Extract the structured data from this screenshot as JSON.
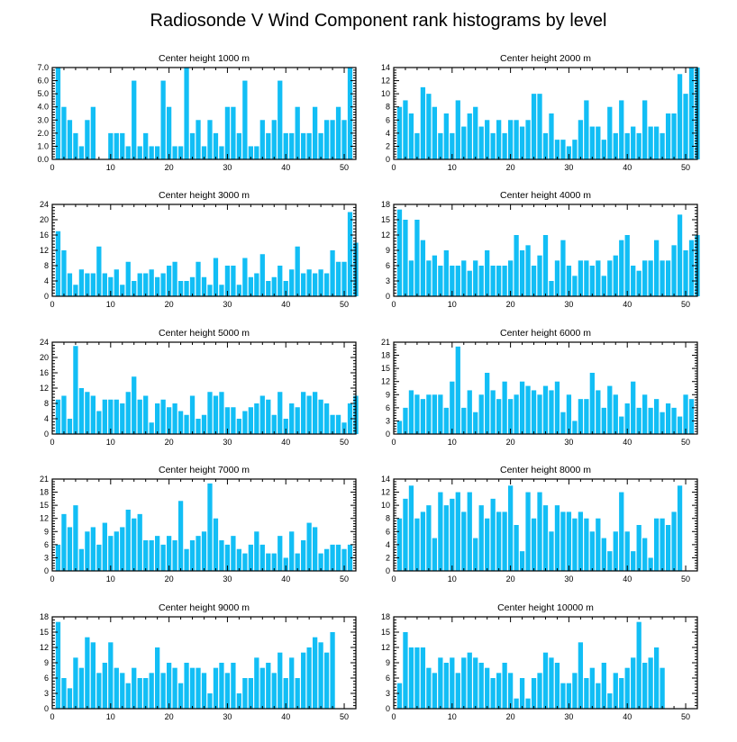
{
  "figure_title": "Radiosonde V Wind Component rank histograms by level",
  "colors": {
    "bar": "#12BEF5",
    "frame": "#000000"
  },
  "chart_data": [
    {
      "type": "bar",
      "title": "Center height 1000 m",
      "xlabel": "",
      "ylabel": "",
      "xlim": [
        0,
        52
      ],
      "xticks": [
        0,
        10,
        20,
        30,
        40,
        50
      ],
      "ylim": [
        0,
        7
      ],
      "yticks": [
        0,
        1,
        2,
        3,
        4,
        5,
        6,
        7
      ],
      "ytick_decimals": 1,
      "x_start": 1,
      "values": [
        7,
        4,
        3,
        2,
        1,
        3,
        4,
        0,
        0,
        2,
        2,
        2,
        1,
        6,
        1,
        2,
        1,
        1,
        6,
        4,
        1,
        1,
        7,
        2,
        3,
        1,
        3,
        2,
        1,
        4,
        4,
        2,
        6,
        1,
        1,
        3,
        2,
        3,
        6,
        2,
        2,
        4,
        2,
        2,
        4,
        2,
        3,
        3,
        4,
        3,
        7
      ]
    },
    {
      "type": "bar",
      "title": "Center height 2000 m",
      "xlabel": "",
      "ylabel": "",
      "xlim": [
        0,
        52
      ],
      "xticks": [
        0,
        10,
        20,
        30,
        40,
        50
      ],
      "ylim": [
        0,
        14
      ],
      "yticks": [
        0,
        2,
        4,
        6,
        8,
        10,
        12,
        14
      ],
      "ytick_decimals": 0,
      "x_start": 1,
      "values": [
        8,
        9,
        7,
        4,
        11,
        10,
        8,
        4,
        7,
        4,
        9,
        5,
        7,
        8,
        5,
        6,
        4,
        6,
        4,
        6,
        6,
        5,
        6,
        10,
        10,
        4,
        7,
        3,
        3,
        2,
        3,
        6,
        9,
        5,
        5,
        3,
        8,
        4,
        9,
        4,
        5,
        4,
        9,
        5,
        5,
        4,
        7,
        7,
        13,
        10,
        14,
        14
      ]
    },
    {
      "type": "bar",
      "title": "Center height 3000 m",
      "xlabel": "",
      "ylabel": "",
      "xlim": [
        0,
        52
      ],
      "xticks": [
        0,
        10,
        20,
        30,
        40,
        50
      ],
      "ylim": [
        0,
        24
      ],
      "yticks": [
        0,
        4,
        8,
        12,
        16,
        20,
        24
      ],
      "ytick_decimals": 0,
      "x_start": 1,
      "values": [
        17,
        12,
        6,
        3,
        7,
        6,
        6,
        13,
        6,
        5,
        7,
        3,
        9,
        4,
        6,
        6,
        7,
        5,
        6,
        8,
        9,
        4,
        4,
        5,
        9,
        5,
        3,
        10,
        3,
        8,
        8,
        3,
        10,
        5,
        6,
        11,
        4,
        5,
        8,
        4,
        7,
        13,
        6,
        7,
        6,
        7,
        6,
        12,
        9,
        9,
        22,
        14
      ]
    },
    {
      "type": "bar",
      "title": "Center height 4000 m",
      "xlabel": "",
      "ylabel": "",
      "xlim": [
        0,
        52
      ],
      "xticks": [
        0,
        10,
        20,
        30,
        40,
        50
      ],
      "ylim": [
        0,
        18
      ],
      "yticks": [
        0,
        3,
        6,
        9,
        12,
        15,
        18
      ],
      "ytick_decimals": 0,
      "x_start": 1,
      "values": [
        17,
        15,
        7,
        15,
        11,
        7,
        8,
        6,
        9,
        6,
        6,
        7,
        5,
        7,
        6,
        9,
        6,
        6,
        6,
        7,
        12,
        9,
        10,
        6,
        8,
        12,
        3,
        7,
        11,
        6,
        4,
        7,
        7,
        6,
        7,
        4,
        7,
        8,
        11,
        12,
        6,
        5,
        7,
        7,
        11,
        7,
        7,
        10,
        16,
        9,
        11,
        12
      ]
    },
    {
      "type": "bar",
      "title": "Center height 5000 m",
      "xlabel": "",
      "ylabel": "",
      "xlim": [
        0,
        52
      ],
      "xticks": [
        0,
        10,
        20,
        30,
        40,
        50
      ],
      "ylim": [
        0,
        24
      ],
      "yticks": [
        0,
        4,
        8,
        12,
        16,
        20,
        24
      ],
      "ytick_decimals": 0,
      "x_start": 1,
      "values": [
        9,
        10,
        4,
        23,
        12,
        11,
        10,
        6,
        9,
        9,
        9,
        8,
        11,
        15,
        9,
        10,
        3,
        8,
        9,
        7,
        8,
        6,
        5,
        10,
        4,
        5,
        11,
        10,
        11,
        7,
        7,
        4,
        6,
        7,
        8,
        10,
        9,
        5,
        11,
        4,
        8,
        7,
        11,
        10,
        11,
        9,
        8,
        5,
        5,
        3,
        8,
        10
      ]
    },
    {
      "type": "bar",
      "title": "Center height 6000 m",
      "xlabel": "",
      "ylabel": "",
      "xlim": [
        0,
        52
      ],
      "xticks": [
        0,
        10,
        20,
        30,
        40,
        50
      ],
      "ylim": [
        0,
        21
      ],
      "yticks": [
        0,
        3,
        6,
        9,
        12,
        15,
        18,
        21
      ],
      "ytick_decimals": 0,
      "x_start": 1,
      "values": [
        3,
        6,
        10,
        9,
        8,
        9,
        9,
        9,
        6,
        12,
        20,
        6,
        10,
        5,
        9,
        14,
        10,
        8,
        12,
        8,
        9,
        12,
        11,
        10,
        9,
        11,
        10,
        12,
        5,
        9,
        3,
        8,
        8,
        14,
        10,
        6,
        11,
        9,
        4,
        7,
        12,
        6,
        9,
        6,
        8,
        5,
        7,
        6,
        4,
        9,
        8
      ]
    },
    {
      "type": "bar",
      "title": "Center height 7000 m",
      "xlabel": "",
      "ylabel": "",
      "xlim": [
        0,
        52
      ],
      "xticks": [
        0,
        10,
        20,
        30,
        40,
        50
      ],
      "ylim": [
        0,
        21
      ],
      "yticks": [
        0,
        3,
        6,
        9,
        12,
        15,
        18,
        21
      ],
      "ytick_decimals": 0,
      "x_start": 1,
      "values": [
        6,
        13,
        10,
        15,
        5,
        9,
        10,
        6,
        11,
        8,
        9,
        10,
        14,
        12,
        13,
        7,
        7,
        8,
        6,
        8,
        7,
        16,
        5,
        7,
        8,
        9,
        20,
        12,
        7,
        6,
        8,
        5,
        4,
        6,
        9,
        6,
        4,
        4,
        8,
        3,
        9,
        4,
        7,
        11,
        10,
        4,
        5,
        6,
        6,
        5,
        6
      ]
    },
    {
      "type": "bar",
      "title": "Center height 8000 m",
      "xlabel": "",
      "ylabel": "",
      "xlim": [
        0,
        52
      ],
      "xticks": [
        0,
        10,
        20,
        30,
        40,
        50
      ],
      "ylim": [
        0,
        14
      ],
      "yticks": [
        0,
        2,
        4,
        6,
        8,
        10,
        12,
        14
      ],
      "ytick_decimals": 0,
      "x_start": 1,
      "values": [
        8,
        11,
        13,
        8,
        9,
        10,
        5,
        12,
        10,
        11,
        12,
        9,
        12,
        5,
        10,
        8,
        11,
        9,
        9,
        13,
        7,
        3,
        12,
        8,
        12,
        10,
        6,
        10,
        9,
        9,
        8,
        9,
        8,
        6,
        8,
        5,
        3,
        6,
        12,
        6,
        3,
        7,
        5,
        2,
        8,
        8,
        7,
        9,
        13
      ]
    },
    {
      "type": "bar",
      "title": "Center height 9000 m",
      "xlabel": "",
      "ylabel": "",
      "xlim": [
        0,
        52
      ],
      "xticks": [
        0,
        10,
        20,
        30,
        40,
        50
      ],
      "ylim": [
        0,
        18
      ],
      "yticks": [
        0,
        3,
        6,
        9,
        12,
        15,
        18
      ],
      "ytick_decimals": 0,
      "x_start": 1,
      "values": [
        17,
        6,
        4,
        10,
        8,
        14,
        13,
        7,
        9,
        13,
        8,
        7,
        5,
        8,
        6,
        6,
        7,
        12,
        7,
        9,
        8,
        5,
        9,
        8,
        8,
        7,
        3,
        8,
        9,
        7,
        9,
        3,
        6,
        6,
        10,
        8,
        9,
        7,
        11,
        6,
        10,
        6,
        11,
        12,
        14,
        13,
        11,
        15
      ]
    },
    {
      "type": "bar",
      "title": "Center height 10000 m",
      "xlabel": "",
      "ylabel": "",
      "xlim": [
        0,
        52
      ],
      "xticks": [
        0,
        10,
        20,
        30,
        40,
        50
      ],
      "ylim": [
        0,
        18
      ],
      "yticks": [
        0,
        3,
        6,
        9,
        12,
        15,
        18
      ],
      "ytick_decimals": 0,
      "x_start": 1,
      "values": [
        5,
        15,
        12,
        12,
        12,
        8,
        7,
        10,
        9,
        10,
        7,
        10,
        11,
        10,
        9,
        8,
        6,
        7,
        9,
        7,
        2,
        6,
        2,
        6,
        7,
        11,
        10,
        9,
        5,
        5,
        7,
        13,
        6,
        8,
        5,
        9,
        3,
        7,
        6,
        8,
        10,
        17,
        9,
        10,
        12,
        8
      ]
    }
  ]
}
